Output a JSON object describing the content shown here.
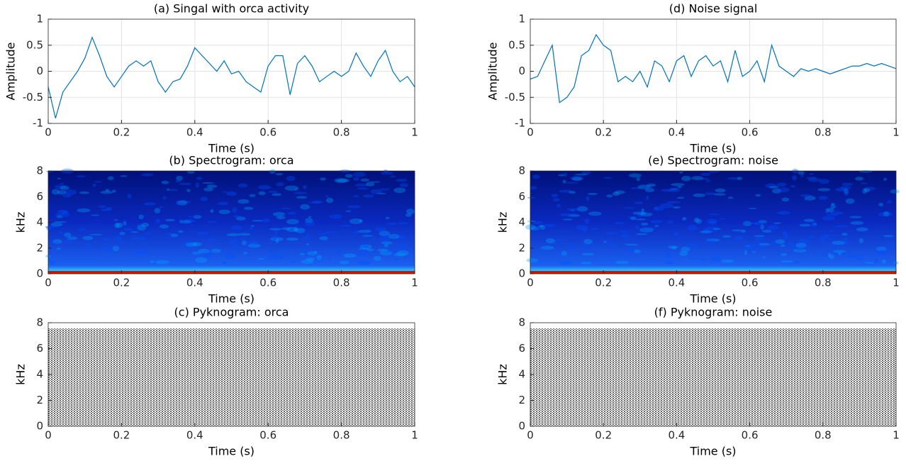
{
  "chart_data": [
    {
      "type": "line",
      "title": "(a) Singal with orca activity",
      "xlabel": "Time (s)",
      "ylabel": "Amplitude",
      "color": "#0072bd",
      "grid": true,
      "xlim": [
        0,
        1
      ],
      "xticks": [
        0,
        0.2,
        0.4,
        0.6,
        0.8,
        1
      ],
      "ylim": [
        -1,
        1
      ],
      "yticks": [
        -1,
        -0.5,
        0,
        0.5,
        1
      ],
      "x": [
        0,
        0.02,
        0.04,
        0.06,
        0.08,
        0.1,
        0.12,
        0.14,
        0.16,
        0.18,
        0.2,
        0.22,
        0.24,
        0.26,
        0.28,
        0.3,
        0.32,
        0.34,
        0.36,
        0.38,
        0.4,
        0.42,
        0.44,
        0.46,
        0.48,
        0.5,
        0.52,
        0.54,
        0.56,
        0.58,
        0.6,
        0.62,
        0.64,
        0.66,
        0.68,
        0.7,
        0.72,
        0.74,
        0.76,
        0.78,
        0.8,
        0.82,
        0.84,
        0.86,
        0.88,
        0.9,
        0.92,
        0.94,
        0.96,
        0.98,
        1
      ],
      "values": [
        -0.3,
        -0.9,
        -0.4,
        -0.2,
        0,
        0.25,
        0.65,
        0.3,
        -0.1,
        -0.3,
        -0.1,
        0.1,
        0.2,
        0.1,
        0.2,
        -0.2,
        -0.4,
        -0.2,
        -0.15,
        0.1,
        0.45,
        0.3,
        0.15,
        0,
        0.2,
        -0.05,
        0,
        -0.2,
        -0.3,
        -0.4,
        0.1,
        0.3,
        0.3,
        -0.45,
        0.15,
        0.3,
        0.1,
        -0.2,
        -0.1,
        0,
        -0.1,
        0,
        0.35,
        0.1,
        -0.1,
        0.2,
        0.4,
        0,
        -0.2,
        -0.1,
        -0.3
      ]
    },
    {
      "type": "spectrogram",
      "title": "(b) Spectrogram: orca",
      "xlabel": "Time (s)",
      "ylabel": "kHz",
      "xlim": [
        0,
        1
      ],
      "xticks": [
        0,
        0.2,
        0.4,
        0.6,
        0.8,
        1
      ],
      "ylim": [
        0,
        8
      ],
      "yticks": [
        0,
        2,
        4,
        6,
        8
      ]
    },
    {
      "type": "pyknogram",
      "title": "(c) Pyknogram: orca",
      "xlabel": "Time (s)",
      "ylabel": "kHz",
      "xlim": [
        0,
        1
      ],
      "xticks": [
        0,
        0.2,
        0.4,
        0.6,
        0.8,
        1
      ],
      "ylim": [
        0,
        8
      ],
      "yticks": [
        0,
        2,
        4,
        6,
        8
      ]
    },
    {
      "type": "line",
      "title": "(d) Noise signal",
      "xlabel": "Time (s)",
      "ylabel": "Amplitude",
      "color": "#0072bd",
      "grid": true,
      "xlim": [
        0,
        1
      ],
      "xticks": [
        0,
        0.2,
        0.4,
        0.6,
        0.8,
        1
      ],
      "ylim": [
        -1,
        1
      ],
      "yticks": [
        -1,
        -0.5,
        0,
        0.5,
        1
      ],
      "x": [
        0,
        0.02,
        0.04,
        0.06,
        0.08,
        0.1,
        0.12,
        0.14,
        0.16,
        0.18,
        0.2,
        0.22,
        0.24,
        0.26,
        0.28,
        0.3,
        0.32,
        0.34,
        0.36,
        0.38,
        0.4,
        0.42,
        0.44,
        0.46,
        0.48,
        0.5,
        0.52,
        0.54,
        0.56,
        0.58,
        0.6,
        0.62,
        0.64,
        0.66,
        0.68,
        0.7,
        0.72,
        0.74,
        0.76,
        0.78,
        0.8,
        0.82,
        0.84,
        0.86,
        0.88,
        0.9,
        0.92,
        0.94,
        0.96,
        0.98,
        1
      ],
      "values": [
        -0.15,
        -0.1,
        0.2,
        0.5,
        -0.6,
        -0.5,
        -0.3,
        0.3,
        0.4,
        0.7,
        0.5,
        0.4,
        -0.2,
        -0.1,
        -0.2,
        0,
        -0.3,
        0.2,
        0.1,
        -0.2,
        0.2,
        0.3,
        -0.1,
        0.2,
        0.3,
        0.1,
        0.2,
        -0.2,
        0.4,
        -0.1,
        0,
        0.2,
        -0.2,
        0.5,
        0.1,
        0,
        -0.1,
        0.05,
        0,
        0.05,
        0,
        -0.05,
        0,
        0.05,
        0.1,
        0.1,
        0.15,
        0.1,
        0.15,
        0.1,
        0.05
      ]
    },
    {
      "type": "spectrogram",
      "title": "(e) Spectrogram: noise",
      "xlabel": "Time (s)",
      "ylabel": "kHz",
      "xlim": [
        0,
        1
      ],
      "xticks": [
        0,
        0.2,
        0.4,
        0.6,
        0.8,
        1
      ],
      "ylim": [
        0,
        8
      ],
      "yticks": [
        0,
        2,
        4,
        6,
        8
      ]
    },
    {
      "type": "pyknogram",
      "title": "(f) Pyknogram: noise",
      "xlabel": "Time (s)",
      "ylabel": "kHz",
      "xlim": [
        0,
        1
      ],
      "xticks": [
        0,
        0.2,
        0.4,
        0.6,
        0.8,
        1
      ],
      "ylim": [
        0,
        8
      ],
      "yticks": [
        0,
        2,
        4,
        6,
        8
      ]
    }
  ]
}
